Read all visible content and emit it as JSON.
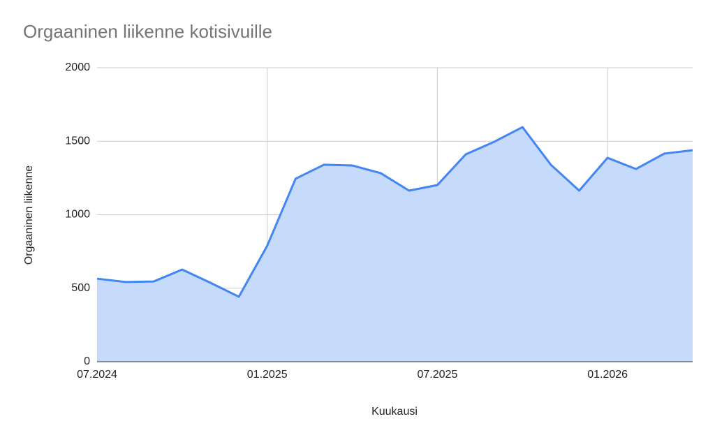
{
  "chart_data": {
    "type": "area",
    "title": "Orgaaninen liikenne kotisivuille",
    "x_label": "Kuukausi",
    "y_label": "Orgaaninen liikenne",
    "categories": [
      "07.2024",
      null,
      null,
      null,
      null,
      null,
      "01.2025",
      null,
      null,
      null,
      null,
      null,
      "07.2025",
      null,
      null,
      null,
      null,
      null,
      "01.2026",
      null,
      null,
      null
    ],
    "series": [
      {
        "name": "Orgaaninen liikenne",
        "color": "#4285f4",
        "fill": "#c6dafc",
        "values": [
          565,
          542,
          546,
          627,
          537,
          442,
          789,
          1245,
          1340,
          1335,
          1283,
          1164,
          1202,
          1411,
          1496,
          1596,
          1340,
          1164,
          1387,
          1311,
          1416,
          1439
        ]
      }
    ],
    "ylim": [
      0,
      2000
    ],
    "yticks": [
      0,
      500,
      1000,
      1500,
      2000
    ],
    "grid": true
  }
}
